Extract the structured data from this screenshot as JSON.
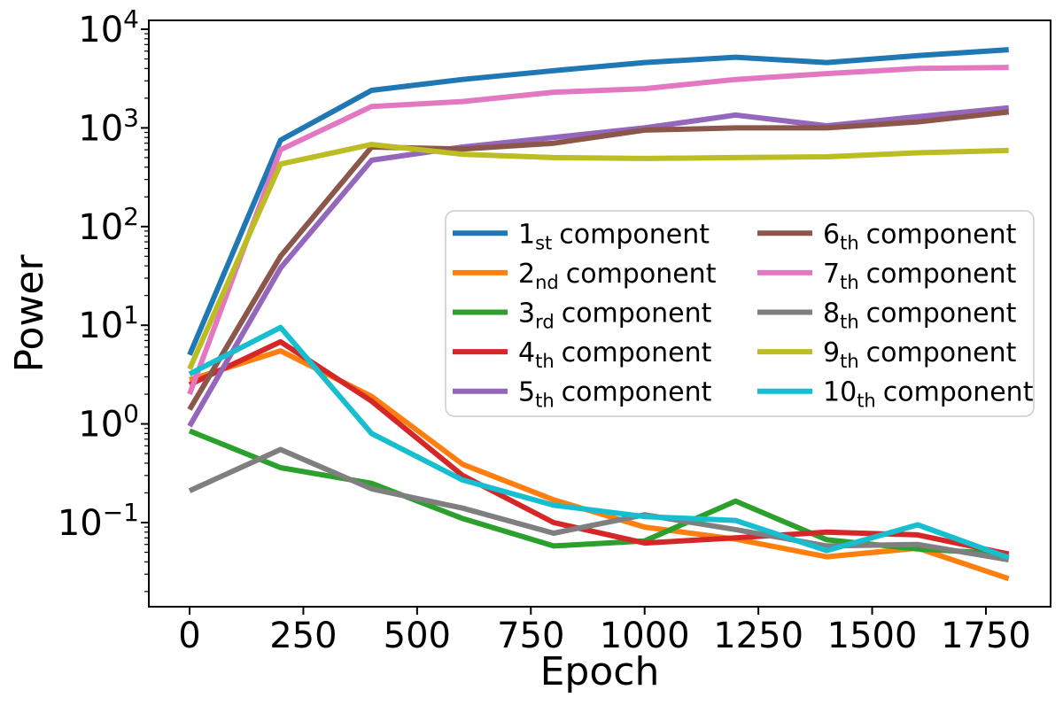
{
  "chart_data": {
    "type": "line",
    "title": "",
    "xlabel": "Epoch",
    "ylabel": "Power",
    "x_scale": "linear",
    "y_scale": "log",
    "x_ticks": [
      0,
      250,
      500,
      750,
      1000,
      1250,
      1500,
      1750
    ],
    "y_tick_exponents": [
      4,
      3,
      2,
      1,
      0,
      -1
    ],
    "x_range_epochs": [
      0,
      1800
    ],
    "y_range_powers_of_ten": [
      -1.8,
      4.1
    ],
    "grid": "off",
    "x": [
      0,
      200,
      400,
      600,
      800,
      1000,
      1200,
      1400,
      1600,
      1800
    ],
    "legend": {
      "columns": 2,
      "position": "center-right",
      "suffix_word": "component",
      "border_color": "#cccccc",
      "background_color": "#ffffff"
    },
    "series": [
      {
        "ordinal": "1",
        "sub": "st",
        "label": "1st component",
        "color": "#1f77b4",
        "values": [
          5.0,
          750,
          2400,
          3100,
          3800,
          4600,
          5200,
          4600,
          5400,
          6200
        ]
      },
      {
        "ordinal": "2",
        "sub": "nd",
        "label": "2nd component",
        "color": "#ff7f0e",
        "values": [
          2.8,
          5.5,
          1.9,
          0.39,
          0.17,
          0.09,
          0.068,
          0.045,
          0.055,
          0.027
        ]
      },
      {
        "ordinal": "3",
        "sub": "rd",
        "label": "3rd component",
        "color": "#2ca02c",
        "values": [
          0.85,
          0.36,
          0.25,
          0.11,
          0.058,
          0.065,
          0.165,
          0.067,
          0.054,
          0.048
        ]
      },
      {
        "ordinal": "4",
        "sub": "th",
        "label": "4th component",
        "color": "#d62728",
        "values": [
          2.5,
          6.8,
          1.7,
          0.3,
          0.1,
          0.062,
          0.07,
          0.08,
          0.075,
          0.048
        ]
      },
      {
        "ordinal": "5",
        "sub": "th",
        "label": "5th component",
        "color": "#9467bd",
        "values": [
          0.95,
          38,
          470,
          640,
          800,
          1000,
          1350,
          1050,
          1300,
          1600
        ]
      },
      {
        "ordinal": "6",
        "sub": "th",
        "label": "6th component",
        "color": "#8c564b",
        "values": [
          1.4,
          50,
          640,
          610,
          700,
          950,
          1000,
          1000,
          1150,
          1450
        ]
      },
      {
        "ordinal": "7",
        "sub": "th",
        "label": "7th component",
        "color": "#e377c2",
        "values": [
          2.0,
          600,
          1650,
          1850,
          2300,
          2500,
          3100,
          3550,
          4000,
          4100
        ]
      },
      {
        "ordinal": "8",
        "sub": "th",
        "label": "8th component",
        "color": "#7f7f7f",
        "values": [
          0.21,
          0.55,
          0.22,
          0.14,
          0.078,
          0.12,
          0.085,
          0.058,
          0.06,
          0.042
        ]
      },
      {
        "ordinal": "9",
        "sub": "th",
        "label": "9th component",
        "color": "#bcbd22",
        "values": [
          3.6,
          430,
          680,
          540,
          500,
          490,
          500,
          510,
          560,
          590
        ]
      },
      {
        "ordinal": "10",
        "sub": "th",
        "label": "10th component",
        "color": "#17becf",
        "values": [
          3.2,
          9.5,
          0.8,
          0.27,
          0.15,
          0.115,
          0.105,
          0.052,
          0.095,
          0.044
        ]
      }
    ]
  }
}
